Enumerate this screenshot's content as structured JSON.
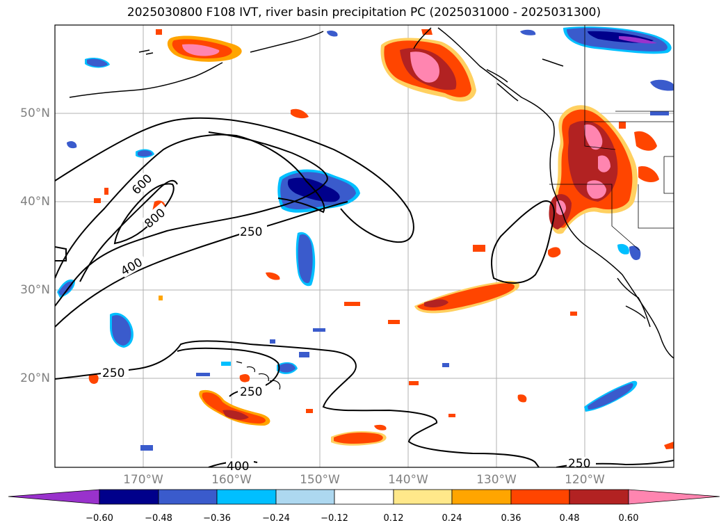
{
  "title": "2025030800 F108 IVT, river basin precipitation PC (2025031000 - 2025031300)",
  "lat_labels": [
    "50°N",
    "40°N",
    "30°N",
    "20°N"
  ],
  "lon_labels": [
    "170°W",
    "160°W",
    "150°W",
    "140°W",
    "130°W",
    "120°W"
  ],
  "ivt_contour_labels": [
    "600",
    "800",
    "400",
    "250",
    "250",
    "250",
    "400",
    "250"
  ],
  "colorbar": {
    "ticks": [
      "−0.60",
      "−0.48",
      "−0.36",
      "−0.24",
      "−0.12",
      "0.12",
      "0.24",
      "0.36",
      "0.48",
      "0.60"
    ],
    "colors": [
      "#9932cc",
      "#00008b",
      "#3a5bcc",
      "#00bfff",
      "#add8f0",
      "#ffffff",
      "#ffe88a",
      "#ffa500",
      "#ff4500",
      "#b22222",
      "#ff85b0"
    ]
  }
}
